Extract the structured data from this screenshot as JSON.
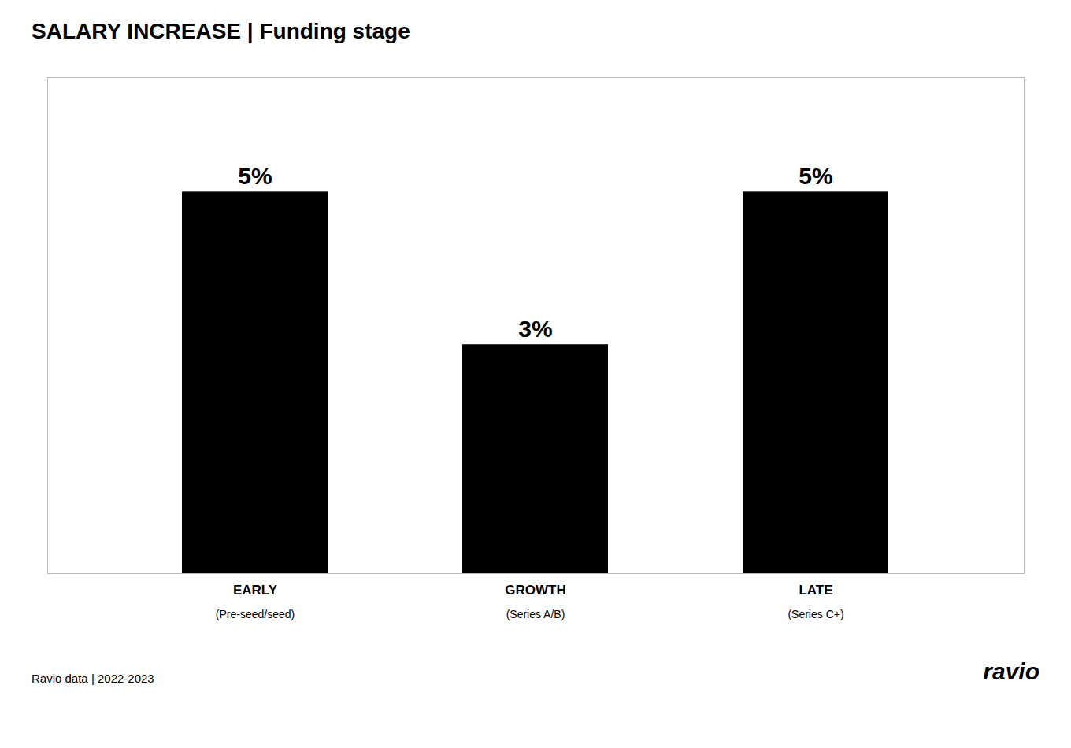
{
  "chart_data": {
    "type": "bar",
    "title": "SALARY INCREASE | Funding stage",
    "categories": [
      "EARLY",
      "GROWTH",
      "LATE"
    ],
    "values": [
      5,
      3,
      5
    ],
    "value_labels": [
      "5%",
      "3%",
      "5%"
    ],
    "data_labels": true,
    "ylim": [
      0,
      6.5
    ],
    "grid": false,
    "tick_labels": "x",
    "annotations": [
      {
        "text": "(Pre-seed/seed)",
        "category": "EARLY"
      },
      {
        "text": "(Series A/B)",
        "category": "GROWTH"
      },
      {
        "text": "(Series C+)",
        "category": "LATE"
      },
      {
        "text": "Ravio data | 2022-2023"
      },
      {
        "text": "ravio"
      }
    ]
  }
}
